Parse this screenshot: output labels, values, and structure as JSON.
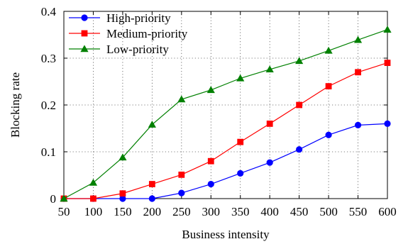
{
  "chart_data": {
    "type": "line",
    "xlabel": "Business intensity",
    "ylabel": "Blocking rate",
    "x": [
      50,
      100,
      150,
      200,
      250,
      300,
      350,
      400,
      450,
      500,
      550,
      600
    ],
    "x_ticks": [
      "50",
      "100",
      "150",
      "200",
      "250",
      "300",
      "350",
      "400",
      "450",
      "500",
      "550",
      "600"
    ],
    "y_ticks": [
      "0",
      "0.1",
      "0.2",
      "0.3",
      "0.4"
    ],
    "y_tick_values": [
      0,
      0.1,
      0.2,
      0.3,
      0.4
    ],
    "xlim": [
      50,
      600
    ],
    "ylim": [
      0,
      0.4
    ],
    "grid": true,
    "legend_position": "top-left",
    "series": [
      {
        "name": "High-priority",
        "color": "#0000ff",
        "marker": "circle",
        "values": [
          0,
          0,
          0,
          0,
          0.012,
          0.031,
          0.054,
          0.077,
          0.105,
          0.136,
          0.157,
          0.16
        ]
      },
      {
        "name": "Medium-priority",
        "color": "#ff0000",
        "marker": "square",
        "values": [
          0,
          0,
          0.011,
          0.031,
          0.051,
          0.08,
          0.121,
          0.16,
          0.2,
          0.24,
          0.27,
          0.29
        ]
      },
      {
        "name": "Low-priority",
        "color": "#008000",
        "marker": "triangle",
        "values": [
          0,
          0.034,
          0.088,
          0.158,
          0.212,
          0.232,
          0.257,
          0.276,
          0.294,
          0.316,
          0.339,
          0.361
        ]
      }
    ]
  }
}
